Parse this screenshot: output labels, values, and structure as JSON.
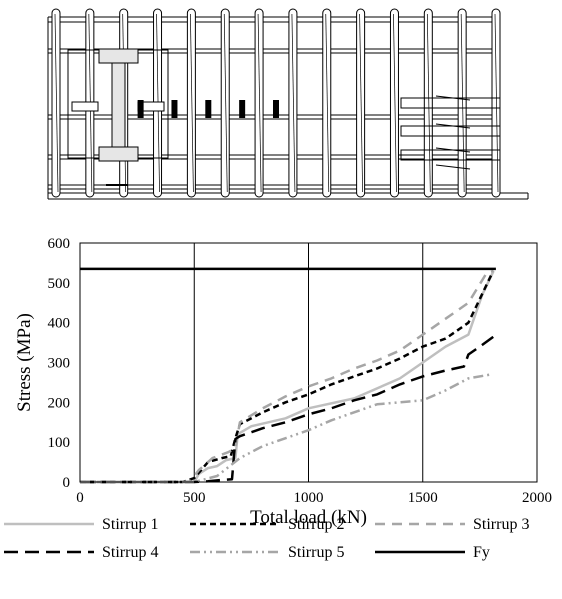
{
  "figure": {
    "diagram": {
      "type": "reinforcement-cage-schematic",
      "stirrup_count": 14,
      "gauge_count": 5
    }
  },
  "chart_data": {
    "type": "line",
    "title": "",
    "xlabel": "Total load (kN)",
    "ylabel": "Stress (MPa)",
    "xlim": [
      0,
      2000
    ],
    "ylim": [
      0,
      600
    ],
    "xticks": [
      0,
      500,
      1000,
      1500,
      2000
    ],
    "yticks": [
      0,
      100,
      200,
      300,
      400,
      500,
      600
    ],
    "grid": "vertical",
    "legend_position": "bottom",
    "series": [
      {
        "name": "Stirrup 1",
        "color": "#bfbfbf",
        "dash": "solid",
        "x": [
          0,
          500,
          520,
          560,
          600,
          640,
          680,
          690,
          750,
          900,
          1000,
          1200,
          1400,
          1500,
          1600,
          1700,
          1760,
          1810
        ],
        "y": [
          0,
          0,
          20,
          35,
          40,
          55,
          60,
          120,
          140,
          160,
          185,
          210,
          260,
          300,
          340,
          370,
          470,
          530
        ]
      },
      {
        "name": "Stirrup 2",
        "color": "#000000",
        "dash": "6,4",
        "x": [
          0,
          450,
          500,
          560,
          620,
          660,
          680,
          700,
          800,
          900,
          1000,
          1100,
          1200,
          1300,
          1400,
          1500,
          1600,
          1700,
          1750,
          1800
        ],
        "y": [
          0,
          0,
          10,
          50,
          60,
          65,
          110,
          145,
          175,
          200,
          220,
          245,
          265,
          285,
          310,
          340,
          360,
          400,
          460,
          520
        ]
      },
      {
        "name": "Stirrup 3",
        "color": "#a6a6a6",
        "dash": "10,7",
        "x": [
          0,
          480,
          520,
          580,
          650,
          680,
          700,
          800,
          900,
          1000,
          1100,
          1200,
          1300,
          1400,
          1500,
          1600,
          1700,
          1780,
          1810
        ],
        "y": [
          0,
          0,
          30,
          60,
          75,
          85,
          150,
          185,
          215,
          240,
          260,
          285,
          305,
          330,
          370,
          410,
          450,
          525,
          530
        ]
      },
      {
        "name": "Stirrup 4",
        "color": "#000000",
        "dash": "14,7",
        "x": [
          0,
          500,
          560,
          620,
          665,
          680,
          700,
          800,
          900,
          1000,
          1100,
          1200,
          1300,
          1400,
          1500,
          1600,
          1680,
          1700,
          1750,
          1810
        ],
        "y": [
          0,
          0,
          2,
          5,
          7,
          108,
          115,
          135,
          150,
          170,
          185,
          205,
          220,
          245,
          265,
          280,
          290,
          320,
          340,
          365
        ]
      },
      {
        "name": "Stirrup 5",
        "color": "#a6a6a6",
        "dash": "10,4,2,4,2,4",
        "x": [
          0,
          500,
          600,
          700,
          800,
          900,
          1000,
          1100,
          1200,
          1300,
          1400,
          1500,
          1600,
          1700,
          1800
        ],
        "y": [
          0,
          0,
          15,
          60,
          90,
          110,
          130,
          155,
          175,
          195,
          200,
          205,
          230,
          260,
          270
        ]
      },
      {
        "name": "Fy",
        "color": "#000000",
        "dash": "solid",
        "x": [
          0,
          1820
        ],
        "y": [
          535,
          535
        ]
      }
    ]
  }
}
